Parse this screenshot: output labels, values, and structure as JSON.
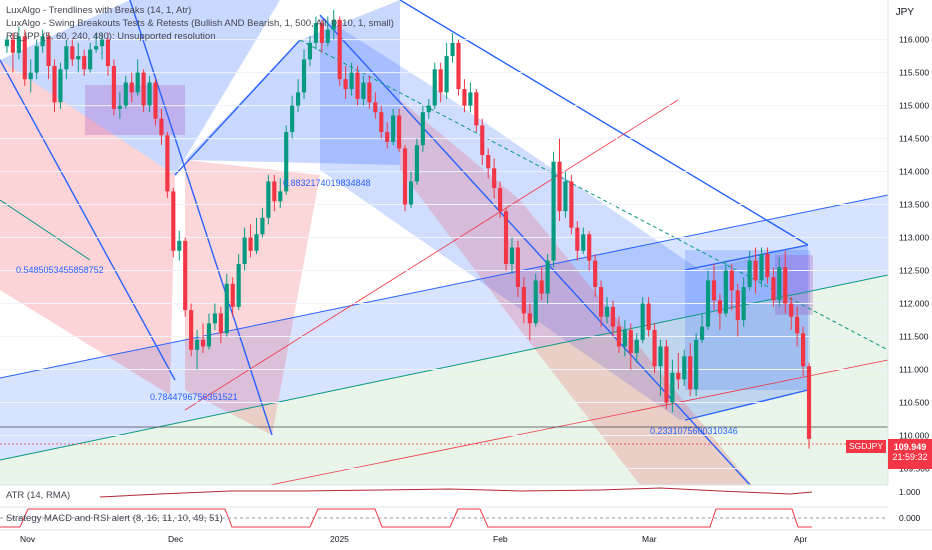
{
  "legend": {
    "line1": "LuxAlgo - Trendlines with Breaks (14, 1, Atr)",
    "line2": "LuxAlgo - Swing Breakouts Tests & Retests (Bullish AND Bearish, 1, 500, All, 0, 10, 1, small)",
    "line3": "RB_IPP (5, 60, 240, 480): Unsupported resolution"
  },
  "currency": "JPY",
  "symbol": "SGDJPY",
  "last_price": "109.949",
  "countdown": "21:59:32",
  "atr_label": "ATR (14, RMA)",
  "strategy_label": "Strategy MACD and RSI alert (8, 16, 11, 10, 49, 51)",
  "atr_ticks": [
    "1.000"
  ],
  "strategy_ticks": [
    "0.000"
  ],
  "colors": {
    "bull": "#089981",
    "bear": "#f23645",
    "blue": "#2962ff",
    "grid": "#f0f3fa"
  },
  "chart_data": {
    "type": "candlestick",
    "ylim": [
      109.25,
      116.6
    ],
    "y_ticks": [
      "116.000",
      "115.500",
      "115.000",
      "114.500",
      "114.000",
      "113.500",
      "113.000",
      "112.500",
      "112.000",
      "111.500",
      "111.000",
      "110.500",
      "110.000",
      "109.500"
    ],
    "x_ticks": [
      "Nov",
      "Dec",
      "2025",
      "Feb",
      "Mar",
      "Apr"
    ],
    "annotations": [
      "0.5485053455858752",
      "0.8832174019834848",
      "0.7844796756351521",
      "0.2331075600310346"
    ],
    "candles": [
      {
        "o": 115.9,
        "c": 116.0,
        "h": 116.05,
        "l": 115.8
      },
      {
        "o": 116.0,
        "c": 115.8,
        "h": 116.1,
        "l": 115.5
      },
      {
        "o": 115.8,
        "c": 116.05,
        "h": 116.2,
        "l": 115.7
      },
      {
        "o": 116.05,
        "c": 115.4,
        "h": 116.15,
        "l": 115.3
      },
      {
        "o": 115.4,
        "c": 115.5,
        "h": 115.7,
        "l": 115.2
      },
      {
        "o": 115.5,
        "c": 115.9,
        "h": 116.0,
        "l": 115.4
      },
      {
        "o": 115.9,
        "c": 116.05,
        "h": 116.15,
        "l": 115.8
      },
      {
        "o": 116.05,
        "c": 115.6,
        "h": 116.1,
        "l": 115.4
      },
      {
        "o": 115.6,
        "c": 115.05,
        "h": 115.7,
        "l": 114.9
      },
      {
        "o": 115.05,
        "c": 115.55,
        "h": 115.65,
        "l": 114.95
      },
      {
        "o": 115.55,
        "c": 115.9,
        "h": 116.0,
        "l": 115.4
      },
      {
        "o": 115.9,
        "c": 115.7,
        "h": 116.0,
        "l": 115.6
      },
      {
        "o": 115.7,
        "c": 115.75,
        "h": 115.95,
        "l": 115.5
      },
      {
        "o": 115.75,
        "c": 115.55,
        "h": 115.85,
        "l": 115.45
      },
      {
        "o": 115.55,
        "c": 115.85,
        "h": 115.95,
        "l": 115.5
      },
      {
        "o": 115.85,
        "c": 115.9,
        "h": 116.1,
        "l": 115.8
      },
      {
        "o": 115.9,
        "c": 116.0,
        "h": 116.1,
        "l": 115.7
      },
      {
        "o": 116.0,
        "c": 115.6,
        "h": 116.1,
        "l": 115.45
      },
      {
        "o": 115.6,
        "c": 114.95,
        "h": 115.7,
        "l": 114.85
      },
      {
        "o": 114.95,
        "c": 115.0,
        "h": 115.2,
        "l": 114.8
      },
      {
        "o": 115.0,
        "c": 115.35,
        "h": 115.45,
        "l": 114.95
      },
      {
        "o": 115.35,
        "c": 115.2,
        "h": 115.5,
        "l": 115.05
      },
      {
        "o": 115.2,
        "c": 115.5,
        "h": 115.7,
        "l": 115.15
      },
      {
        "o": 115.5,
        "c": 115.0,
        "h": 115.55,
        "l": 114.9
      },
      {
        "o": 115.0,
        "c": 115.35,
        "h": 115.45,
        "l": 114.9
      },
      {
        "o": 115.35,
        "c": 114.8,
        "h": 115.4,
        "l": 114.7
      },
      {
        "o": 114.8,
        "c": 114.55,
        "h": 114.95,
        "l": 114.4
      },
      {
        "o": 114.55,
        "c": 113.7,
        "h": 114.6,
        "l": 113.6
      },
      {
        "o": 113.7,
        "c": 112.8,
        "h": 113.75,
        "l": 112.7
      },
      {
        "o": 112.8,
        "c": 112.95,
        "h": 113.1,
        "l": 112.65
      },
      {
        "o": 112.95,
        "c": 111.9,
        "h": 113.0,
        "l": 111.8
      },
      {
        "o": 111.9,
        "c": 111.3,
        "h": 112.0,
        "l": 111.2
      },
      {
        "o": 111.3,
        "c": 111.45,
        "h": 111.6,
        "l": 111.0
      },
      {
        "o": 111.45,
        "c": 111.35,
        "h": 111.7,
        "l": 111.25
      },
      {
        "o": 111.35,
        "c": 111.7,
        "h": 111.85,
        "l": 111.3
      },
      {
        "o": 111.7,
        "c": 111.85,
        "h": 112.0,
        "l": 111.6
      },
      {
        "o": 111.85,
        "c": 111.55,
        "h": 111.95,
        "l": 111.4
      },
      {
        "o": 111.55,
        "c": 112.3,
        "h": 112.45,
        "l": 111.5
      },
      {
        "o": 112.3,
        "c": 111.95,
        "h": 112.4,
        "l": 111.8
      },
      {
        "o": 111.95,
        "c": 112.6,
        "h": 112.75,
        "l": 111.9
      },
      {
        "o": 112.6,
        "c": 113.0,
        "h": 113.15,
        "l": 112.5
      },
      {
        "o": 113.0,
        "c": 112.8,
        "h": 113.2,
        "l": 112.7
      },
      {
        "o": 112.8,
        "c": 113.05,
        "h": 113.3,
        "l": 112.75
      },
      {
        "o": 113.05,
        "c": 113.3,
        "h": 113.45,
        "l": 113.0
      },
      {
        "o": 113.3,
        "c": 113.85,
        "h": 113.95,
        "l": 113.2
      },
      {
        "o": 113.85,
        "c": 113.55,
        "h": 113.95,
        "l": 113.4
      },
      {
        "o": 113.55,
        "c": 113.7,
        "h": 113.9,
        "l": 113.45
      },
      {
        "o": 113.7,
        "c": 114.6,
        "h": 114.7,
        "l": 113.65
      },
      {
        "o": 114.6,
        "c": 115.0,
        "h": 115.15,
        "l": 114.5
      },
      {
        "o": 115.0,
        "c": 115.2,
        "h": 115.4,
        "l": 114.9
      },
      {
        "o": 115.2,
        "c": 115.7,
        "h": 115.85,
        "l": 115.1
      },
      {
        "o": 115.7,
        "c": 115.95,
        "h": 116.05,
        "l": 115.6
      },
      {
        "o": 115.95,
        "c": 116.25,
        "h": 116.35,
        "l": 115.85
      },
      {
        "o": 116.25,
        "c": 115.95,
        "h": 116.3,
        "l": 115.8
      },
      {
        "o": 115.95,
        "c": 116.15,
        "h": 116.35,
        "l": 115.9
      },
      {
        "o": 116.15,
        "c": 116.3,
        "h": 116.45,
        "l": 116.0
      },
      {
        "o": 116.3,
        "c": 115.4,
        "h": 116.35,
        "l": 115.3
      },
      {
        "o": 115.4,
        "c": 115.25,
        "h": 115.6,
        "l": 115.1
      },
      {
        "o": 115.25,
        "c": 115.5,
        "h": 115.65,
        "l": 115.15
      },
      {
        "o": 115.5,
        "c": 115.1,
        "h": 115.6,
        "l": 115.0
      },
      {
        "o": 115.1,
        "c": 115.35,
        "h": 115.45,
        "l": 115.0
      },
      {
        "o": 115.35,
        "c": 115.05,
        "h": 115.45,
        "l": 114.95
      },
      {
        "o": 115.05,
        "c": 114.9,
        "h": 115.2,
        "l": 114.8
      },
      {
        "o": 114.9,
        "c": 114.6,
        "h": 115.0,
        "l": 114.5
      },
      {
        "o": 114.6,
        "c": 114.45,
        "h": 114.75,
        "l": 114.35
      },
      {
        "o": 114.45,
        "c": 114.85,
        "h": 114.95,
        "l": 114.4
      },
      {
        "o": 114.85,
        "c": 114.35,
        "h": 114.95,
        "l": 114.3
      },
      {
        "o": 114.35,
        "c": 113.5,
        "h": 114.4,
        "l": 113.4
      },
      {
        "o": 113.5,
        "c": 113.85,
        "h": 114.0,
        "l": 113.45
      },
      {
        "o": 113.85,
        "c": 114.4,
        "h": 114.5,
        "l": 113.8
      },
      {
        "o": 114.4,
        "c": 114.9,
        "h": 115.0,
        "l": 114.3
      },
      {
        "o": 114.9,
        "c": 115.0,
        "h": 115.1,
        "l": 114.8
      },
      {
        "o": 115.0,
        "c": 115.55,
        "h": 115.65,
        "l": 114.95
      },
      {
        "o": 115.55,
        "c": 115.2,
        "h": 115.65,
        "l": 115.05
      },
      {
        "o": 115.2,
        "c": 115.75,
        "h": 115.95,
        "l": 115.1
      },
      {
        "o": 115.75,
        "c": 115.95,
        "h": 116.1,
        "l": 115.65
      },
      {
        "o": 115.95,
        "c": 115.25,
        "h": 116.0,
        "l": 115.15
      },
      {
        "o": 115.25,
        "c": 115.0,
        "h": 115.4,
        "l": 114.9
      },
      {
        "o": 115.0,
        "c": 115.2,
        "h": 115.35,
        "l": 114.9
      },
      {
        "o": 115.2,
        "c": 114.7,
        "h": 115.25,
        "l": 114.6
      },
      {
        "o": 114.7,
        "c": 114.25,
        "h": 114.8,
        "l": 114.1
      },
      {
        "o": 114.25,
        "c": 114.05,
        "h": 114.35,
        "l": 113.9
      },
      {
        "o": 114.05,
        "c": 113.75,
        "h": 114.2,
        "l": 113.6
      },
      {
        "o": 113.75,
        "c": 113.4,
        "h": 113.85,
        "l": 113.3
      },
      {
        "o": 113.4,
        "c": 112.6,
        "h": 113.45,
        "l": 112.5
      },
      {
        "o": 112.6,
        "c": 112.85,
        "h": 113.0,
        "l": 112.45
      },
      {
        "o": 112.85,
        "c": 112.25,
        "h": 112.95,
        "l": 112.1
      },
      {
        "o": 112.25,
        "c": 111.85,
        "h": 112.4,
        "l": 111.7
      },
      {
        "o": 111.85,
        "c": 111.7,
        "h": 112.0,
        "l": 111.45
      },
      {
        "o": 111.7,
        "c": 112.35,
        "h": 112.45,
        "l": 111.65
      },
      {
        "o": 112.35,
        "c": 112.15,
        "h": 112.55,
        "l": 112.05
      },
      {
        "o": 112.15,
        "c": 112.65,
        "h": 112.75,
        "l": 112.0
      },
      {
        "o": 112.65,
        "c": 114.15,
        "h": 114.3,
        "l": 112.55
      },
      {
        "o": 114.15,
        "c": 113.4,
        "h": 114.5,
        "l": 113.25
      },
      {
        "o": 113.4,
        "c": 113.85,
        "h": 114.0,
        "l": 113.3
      },
      {
        "o": 113.85,
        "c": 113.15,
        "h": 113.95,
        "l": 113.05
      },
      {
        "o": 113.15,
        "c": 112.8,
        "h": 113.25,
        "l": 112.65
      },
      {
        "o": 112.8,
        "c": 113.05,
        "h": 113.15,
        "l": 112.75
      },
      {
        "o": 113.05,
        "c": 112.65,
        "h": 113.1,
        "l": 112.5
      },
      {
        "o": 112.65,
        "c": 112.25,
        "h": 112.75,
        "l": 112.1
      },
      {
        "o": 112.25,
        "c": 111.8,
        "h": 112.35,
        "l": 111.65
      },
      {
        "o": 111.8,
        "c": 111.95,
        "h": 112.1,
        "l": 111.7
      },
      {
        "o": 111.95,
        "c": 111.65,
        "h": 112.05,
        "l": 111.5
      },
      {
        "o": 111.65,
        "c": 111.35,
        "h": 111.8,
        "l": 111.25
      },
      {
        "o": 111.35,
        "c": 111.6,
        "h": 111.75,
        "l": 111.2
      },
      {
        "o": 111.6,
        "c": 111.25,
        "h": 111.7,
        "l": 111.0
      },
      {
        "o": 111.25,
        "c": 111.45,
        "h": 111.55,
        "l": 111.1
      },
      {
        "o": 111.45,
        "c": 112.0,
        "h": 112.1,
        "l": 111.4
      },
      {
        "o": 112.0,
        "c": 111.6,
        "h": 112.1,
        "l": 111.5
      },
      {
        "o": 111.6,
        "c": 111.05,
        "h": 111.7,
        "l": 110.95
      },
      {
        "o": 111.05,
        "c": 111.35,
        "h": 111.45,
        "l": 110.6
      },
      {
        "o": 111.35,
        "c": 110.5,
        "h": 111.45,
        "l": 110.4
      },
      {
        "o": 110.5,
        "c": 110.95,
        "h": 111.15,
        "l": 110.35
      },
      {
        "o": 110.95,
        "c": 110.85,
        "h": 111.25,
        "l": 110.7
      },
      {
        "o": 110.85,
        "c": 111.2,
        "h": 111.3,
        "l": 110.75
      },
      {
        "o": 111.2,
        "c": 110.7,
        "h": 111.4,
        "l": 110.6
      },
      {
        "o": 110.7,
        "c": 111.45,
        "h": 111.55,
        "l": 110.6
      },
      {
        "o": 111.45,
        "c": 111.65,
        "h": 111.85,
        "l": 111.4
      },
      {
        "o": 111.65,
        "c": 112.35,
        "h": 112.5,
        "l": 111.6
      },
      {
        "o": 112.35,
        "c": 112.05,
        "h": 112.6,
        "l": 111.9
      },
      {
        "o": 112.05,
        "c": 111.85,
        "h": 112.15,
        "l": 111.6
      },
      {
        "o": 111.85,
        "c": 112.5,
        "h": 112.65,
        "l": 111.8
      },
      {
        "o": 112.5,
        "c": 112.2,
        "h": 112.6,
        "l": 111.9
      },
      {
        "o": 112.2,
        "c": 111.75,
        "h": 112.3,
        "l": 111.5
      },
      {
        "o": 111.75,
        "c": 112.25,
        "h": 112.4,
        "l": 111.65
      },
      {
        "o": 112.25,
        "c": 112.65,
        "h": 112.8,
        "l": 112.2
      },
      {
        "o": 112.65,
        "c": 112.35,
        "h": 112.85,
        "l": 112.15
      },
      {
        "o": 112.35,
        "c": 112.75,
        "h": 112.85,
        "l": 112.25
      },
      {
        "o": 112.75,
        "c": 112.4,
        "h": 112.85,
        "l": 112.3
      },
      {
        "o": 112.4,
        "c": 112.05,
        "h": 112.55,
        "l": 111.95
      },
      {
        "o": 112.05,
        "c": 112.55,
        "h": 112.7,
        "l": 111.95
      },
      {
        "o": 112.55,
        "c": 112.0,
        "h": 112.8,
        "l": 111.85
      },
      {
        "o": 112.0,
        "c": 111.8,
        "h": 112.1,
        "l": 111.6
      },
      {
        "o": 111.8,
        "c": 111.55,
        "h": 111.95,
        "l": 111.35
      },
      {
        "o": 111.55,
        "c": 111.05,
        "h": 111.65,
        "l": 110.9
      },
      {
        "o": 111.05,
        "c": 109.95,
        "h": 111.1,
        "l": 109.8
      }
    ]
  }
}
